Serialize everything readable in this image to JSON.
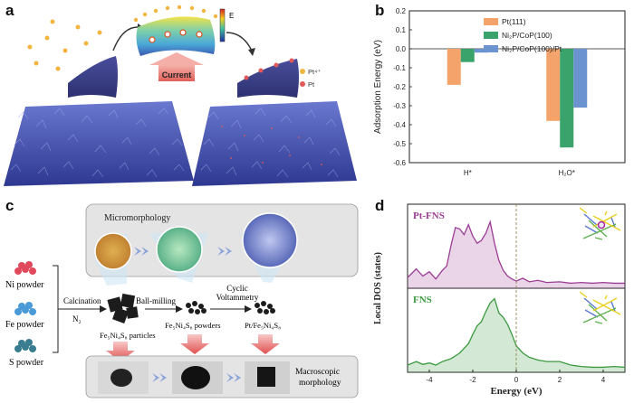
{
  "panels": {
    "a": {
      "letter": "a"
    },
    "b": {
      "letter": "b"
    },
    "c": {
      "letter": "c"
    },
    "d": {
      "letter": "d"
    }
  },
  "panel_a": {
    "legend": [
      "Pt⁴⁺",
      "Pt"
    ],
    "energy_label": "E",
    "current_label": "Current",
    "colors": {
      "pt4": "#f2b640",
      "pt": "#e05a5a",
      "sheet": "#3a3f86",
      "surface": "#4a57b8"
    }
  },
  "chart_data": [
    {
      "type": "bar",
      "panel": "b",
      "categories": [
        "H*",
        "H₂O*"
      ],
      "series": [
        {
          "name": "Pt(111)",
          "color": "#f4a46a",
          "values": [
            -0.19,
            -0.38
          ]
        },
        {
          "name": "Ni₂P/CoP(100)",
          "color": "#3aa36b",
          "values": [
            -0.07,
            -0.52
          ]
        },
        {
          "name": "Ni₂P/CoP(100)/Pt",
          "color": "#6b93cf",
          "values": [
            -0.02,
            -0.31
          ]
        }
      ],
      "ylabel": "Adsorption Energy (eV)",
      "ylim": [
        -0.6,
        0.2
      ],
      "yticks": [
        "0.2",
        "0.1",
        "0.0",
        "-0.1",
        "-0.2",
        "-0.3",
        "-0.4",
        "-0.5",
        "-0.6"
      ],
      "legend_position": "top-right"
    },
    {
      "type": "area",
      "panel": "d",
      "xlabel": "Energy (eV)",
      "ylabel": "Local DOS (states)",
      "xlim": [
        -5,
        5
      ],
      "xticks": [
        "-4",
        "-2",
        "0",
        "2",
        "4"
      ],
      "series": [
        {
          "name": "Pt-FNS",
          "color": "#9c3d95",
          "x": [
            -5,
            -4.6,
            -4.3,
            -4.0,
            -3.7,
            -3.4,
            -3.2,
            -3.0,
            -2.8,
            -2.6,
            -2.4,
            -2.2,
            -2.0,
            -1.8,
            -1.6,
            -1.4,
            -1.2,
            -1.0,
            -0.8,
            -0.6,
            -0.4,
            -0.2,
            0,
            0.3,
            0.6,
            1.0,
            1.4,
            2.0,
            2.5,
            3.0,
            3.5,
            4.0,
            4.5,
            5
          ],
          "y": [
            0.1,
            0.22,
            0.12,
            0.18,
            0.08,
            0.2,
            0.26,
            0.55,
            0.8,
            0.78,
            0.7,
            0.84,
            0.68,
            0.58,
            0.62,
            0.72,
            0.88,
            0.58,
            0.34,
            0.2,
            0.12,
            0.08,
            0.05,
            0.09,
            0.04,
            0.06,
            0.03,
            0.04,
            0.02,
            0.03,
            0.02,
            0.03,
            0.02,
            0.02
          ]
        },
        {
          "name": "FNS",
          "color": "#3a9a3f",
          "x": [
            -5,
            -4.6,
            -4.3,
            -4.0,
            -3.7,
            -3.4,
            -3.0,
            -2.6,
            -2.2,
            -2.0,
            -1.8,
            -1.6,
            -1.4,
            -1.2,
            -1.0,
            -0.8,
            -0.6,
            -0.4,
            -0.2,
            0,
            0.3,
            0.6,
            1.0,
            1.4,
            2.0,
            2.5,
            3.0,
            3.5,
            4.0,
            4.5,
            5
          ],
          "y": [
            0.05,
            0.1,
            0.06,
            0.08,
            0.05,
            0.1,
            0.14,
            0.22,
            0.35,
            0.48,
            0.6,
            0.66,
            0.8,
            0.92,
            0.98,
            0.78,
            0.72,
            0.62,
            0.48,
            0.32,
            0.22,
            0.16,
            0.12,
            0.1,
            0.1,
            0.05,
            0.03,
            0.02,
            0.02,
            0.03,
            0.02
          ]
        }
      ],
      "fermi_level": 0
    }
  ],
  "panel_c": {
    "micromorphology_label": "Micromorphology",
    "macroscopic_label": "Macroscopic\nmorphology",
    "powders": [
      "Ni powder",
      "Fe powder",
      "S powder"
    ],
    "calcination_label": "Calcination",
    "n2_label": "N₂",
    "ball_milling_label": "Ball-milling",
    "cyclic_label": "Cyclic\nVoltammetry",
    "product1_label": "Fe₅Ni₄S₈ particles",
    "product2_label": "Fe₅Ni₄S₈ powders",
    "product3_label": "Pt/Fe₅Ni₄S₈",
    "colors": {
      "ni": "#e0485b",
      "fe": "#4a9ad8",
      "s": "#3a7c90"
    }
  }
}
